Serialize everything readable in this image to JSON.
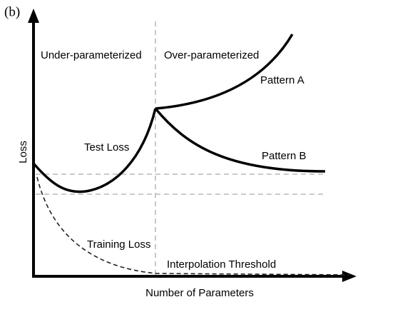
{
  "panel_label": "(b)",
  "axes": {
    "x_label": "Number of Parameters",
    "y_label": "Loss"
  },
  "regions": {
    "left": "Under-parameterized",
    "right": "Over-parameterized"
  },
  "curves": {
    "test": "Test Loss",
    "training": "Training Loss",
    "pattern_a": "Pattern A",
    "pattern_b": "Pattern B"
  },
  "threshold": "Interpolation Threshold"
}
